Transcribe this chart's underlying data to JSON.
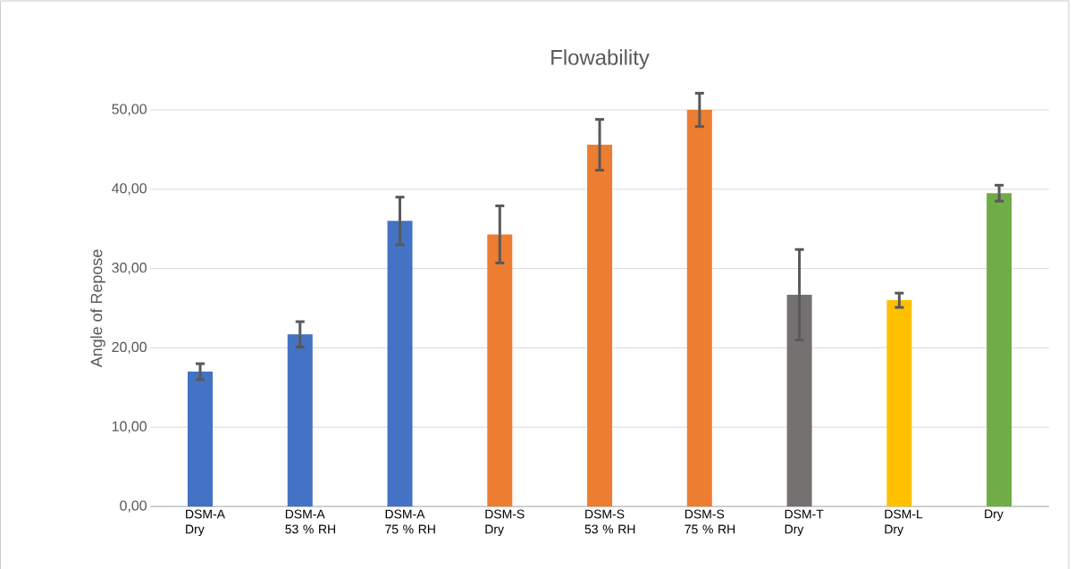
{
  "chart_data": {
    "type": "bar",
    "title": "Flowability",
    "ylabel": "Angle of Repose",
    "categories": [
      "DSM-A Dry",
      "DSM-A 53 % RH",
      "DSM-A 75 % RH",
      "DSM-S Dry",
      "DSM-S 53 % RH",
      "DSM-S 75 % RH",
      "DSM-T Dry",
      "DSM-L Dry",
      "Dry"
    ],
    "values": [
      17.0,
      21.7,
      36.0,
      34.3,
      45.6,
      50.0,
      26.7,
      26.0,
      39.5
    ],
    "errors": [
      1.0,
      1.6,
      3.0,
      3.6,
      3.2,
      2.1,
      5.7,
      0.9,
      1.0
    ],
    "colors": [
      "#4472c4",
      "#4472c4",
      "#4472c4",
      "#ed7d31",
      "#ed7d31",
      "#ed7d31",
      "#767171",
      "#ffc000",
      "#70ad47"
    ],
    "ylim": [
      0,
      50
    ],
    "yticks": [
      {
        "value": 0,
        "label": "0,00"
      },
      {
        "value": 10,
        "label": "10,00"
      },
      {
        "value": 20,
        "label": "20,00"
      },
      {
        "value": 30,
        "label": "30,00"
      },
      {
        "value": 40,
        "label": "40,00"
      },
      {
        "value": 50,
        "label": "50,00"
      }
    ],
    "grid": "y"
  }
}
